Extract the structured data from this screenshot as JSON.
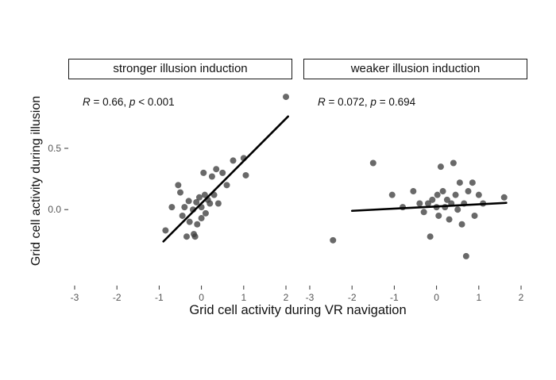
{
  "figure": {
    "xlabel": "Grid cell activity during VR navigation",
    "ylabel": "Grid cell activity during illusion",
    "x_ticks": [
      -3,
      -2,
      -1,
      0,
      1,
      2
    ],
    "y_ticks": [
      0.0,
      0.5
    ],
    "point_color": "#3f3f3f",
    "point_opacity": 0.78,
    "line_color": "#000000",
    "tick_label_color": "#555555"
  },
  "chart_data": [
    {
      "type": "scatter",
      "title": "stronger illusion induction",
      "annotation": {
        "r": "R",
        "r_rest": " = 0.66, ",
        "p": "p",
        "p_rest": " < 0.001"
      },
      "xlim": [
        -3.15,
        2.15
      ],
      "ylim": [
        -0.62,
        1.05
      ],
      "points": [
        [
          -0.85,
          -0.17
        ],
        [
          -0.7,
          0.02
        ],
        [
          -0.55,
          0.2
        ],
        [
          -0.5,
          0.14
        ],
        [
          -0.45,
          -0.05
        ],
        [
          -0.4,
          0.02
        ],
        [
          -0.35,
          -0.22
        ],
        [
          -0.3,
          0.07
        ],
        [
          -0.28,
          -0.1
        ],
        [
          -0.2,
          0.0
        ],
        [
          -0.18,
          -0.2
        ],
        [
          -0.15,
          -0.22
        ],
        [
          -0.12,
          0.06
        ],
        [
          -0.1,
          -0.12
        ],
        [
          -0.05,
          0.1
        ],
        [
          0,
          0.02
        ],
        [
          0,
          -0.07
        ],
        [
          0.05,
          0.3
        ],
        [
          0.08,
          0.12
        ],
        [
          0.1,
          -0.03
        ],
        [
          0.15,
          0.08
        ],
        [
          0.2,
          0.05
        ],
        [
          0.25,
          0.27
        ],
        [
          0.3,
          0.12
        ],
        [
          0.35,
          0.33
        ],
        [
          0.4,
          0.05
        ],
        [
          0.5,
          0.3
        ],
        [
          0.6,
          0.2
        ],
        [
          0.75,
          0.4
        ],
        [
          1.0,
          0.42
        ],
        [
          1.05,
          0.28
        ],
        [
          2.0,
          0.92
        ]
      ],
      "trend": {
        "x1": -0.9,
        "y1": -0.26,
        "x2": 2.05,
        "y2": 0.76
      }
    },
    {
      "type": "scatter",
      "title": "weaker illusion induction",
      "annotation": {
        "r": "R",
        "r_rest": " = 0.072, ",
        "p": "p",
        "p_rest": " = 0.694"
      },
      "xlim": [
        -3.15,
        2.15
      ],
      "ylim": [
        -0.62,
        1.05
      ],
      "points": [
        [
          -2.45,
          -0.25
        ],
        [
          -1.5,
          0.38
        ],
        [
          -1.05,
          0.12
        ],
        [
          -0.8,
          0.02
        ],
        [
          -0.55,
          0.15
        ],
        [
          -0.4,
          0.05
        ],
        [
          -0.3,
          -0.02
        ],
        [
          -0.2,
          0.05
        ],
        [
          -0.15,
          -0.22
        ],
        [
          -0.1,
          0.08
        ],
        [
          0,
          0.02
        ],
        [
          0.02,
          0.12
        ],
        [
          0.05,
          -0.05
        ],
        [
          0.1,
          0.35
        ],
        [
          0.15,
          0.15
        ],
        [
          0.2,
          0.02
        ],
        [
          0.25,
          0.08
        ],
        [
          0.3,
          -0.08
        ],
        [
          0.35,
          0.05
        ],
        [
          0.4,
          0.38
        ],
        [
          0.45,
          0.12
        ],
        [
          0.5,
          0.0
        ],
        [
          0.55,
          0.22
        ],
        [
          0.6,
          -0.12
        ],
        [
          0.65,
          0.05
        ],
        [
          0.7,
          -0.38
        ],
        [
          0.75,
          0.15
        ],
        [
          0.85,
          0.22
        ],
        [
          0.9,
          -0.05
        ],
        [
          1.0,
          0.12
        ],
        [
          1.1,
          0.05
        ],
        [
          1.6,
          0.1
        ]
      ],
      "trend": {
        "x1": -2.0,
        "y1": -0.01,
        "x2": 1.65,
        "y2": 0.055
      }
    }
  ]
}
